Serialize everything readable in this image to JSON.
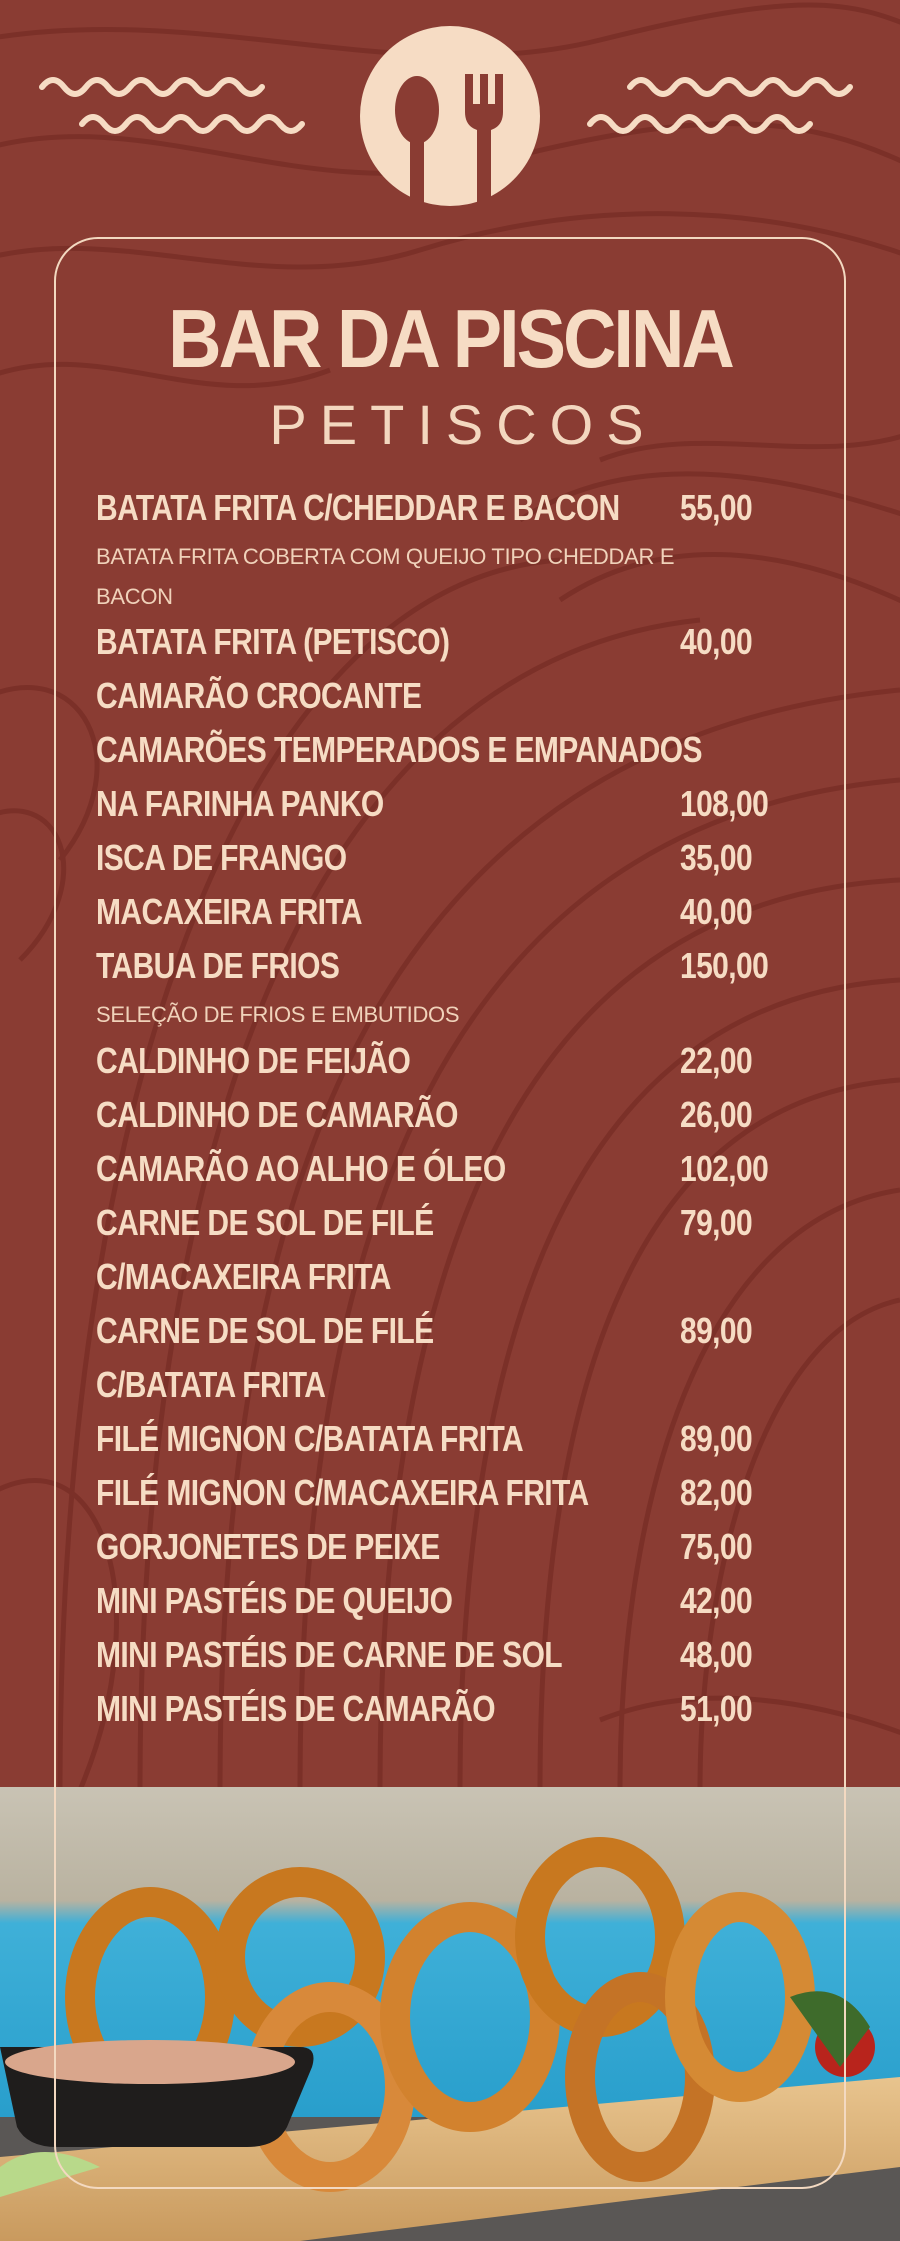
{
  "header": {
    "logo_icon": "spoon-fork-icon",
    "title": "BAR DA PISCINA",
    "subtitle": "PETISCOS"
  },
  "colors": {
    "background": "#8a3c33",
    "pattern": "#7a2f27",
    "text": "#f6dcc4"
  },
  "menu": [
    {
      "type": "item",
      "name": "BATATA FRITA C/CHEDDAR E BACON",
      "price": "55,00"
    },
    {
      "type": "desc",
      "lines": [
        "BATATA FRITA COBERTA COM QUEIJO TIPO CHEDDAR E",
        "BACON"
      ]
    },
    {
      "type": "item",
      "name": "BATATA FRITA (PETISCO)",
      "price": "40,00"
    },
    {
      "type": "item",
      "name": "CAMARÃO CROCANTE",
      "price": ""
    },
    {
      "type": "item",
      "name": "CAMARÕES TEMPERADOS E EMPANADOS",
      "price": ""
    },
    {
      "type": "item",
      "name": "NA FARINHA PANKO",
      "price": "108,00"
    },
    {
      "type": "item",
      "name": "ISCA DE FRANGO",
      "price": "35,00"
    },
    {
      "type": "item",
      "name": "MACAXEIRA FRITA",
      "price": "40,00"
    },
    {
      "type": "item",
      "name": "TABUA DE FRIOS",
      "price": "150,00"
    },
    {
      "type": "desc",
      "lines": [
        "SELEÇÃO DE FRIOS E EMBUTIDOS"
      ]
    },
    {
      "type": "item",
      "name": "CALDINHO DE FEIJÃO",
      "price": "22,00"
    },
    {
      "type": "item",
      "name": "CALDINHO DE CAMARÃO",
      "price": "26,00"
    },
    {
      "type": "item",
      "name": "CAMARÃO AO ALHO E ÓLEO",
      "price": "102,00"
    },
    {
      "type": "item",
      "name": "CARNE DE SOL DE FILÉ",
      "price": "79,00"
    },
    {
      "type": "item",
      "name": "C/MACAXEIRA FRITA",
      "price": ""
    },
    {
      "type": "item",
      "name": "CARNE DE SOL DE FILÉ",
      "price": "89,00"
    },
    {
      "type": "item",
      "name": "C/BATATA FRITA",
      "price": ""
    },
    {
      "type": "item",
      "name": "FILÉ MIGNON C/BATATA FRITA",
      "price": "89,00"
    },
    {
      "type": "item",
      "name": "FILÉ MIGNON C/MACAXEIRA FRITA",
      "price": "82,00"
    },
    {
      "type": "item",
      "name": "GORJONETES DE PEIXE",
      "price": "75,00"
    },
    {
      "type": "item",
      "name": "MINI PASTÉIS DE QUEIJO",
      "price": "42,00"
    },
    {
      "type": "item",
      "name": "MINI PASTÉIS DE CARNE DE SOL",
      "price": "48,00"
    },
    {
      "type": "item",
      "name": "MINI PASTÉIS DE CAMARÃO",
      "price": "51,00"
    }
  ]
}
